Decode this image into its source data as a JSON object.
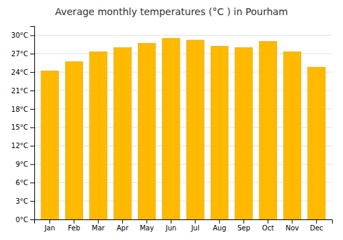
{
  "chart_data": {
    "type": "bar",
    "title": "Average monthly temperatures (°C ) in Pourham",
    "categories": [
      "Jan",
      "Feb",
      "Mar",
      "Apr",
      "May",
      "Jun",
      "Jul",
      "Aug",
      "Sep",
      "Oct",
      "Nov",
      "Dec"
    ],
    "values": [
      24.2,
      25.7,
      27.3,
      28.0,
      28.7,
      29.5,
      29.2,
      28.2,
      28.0,
      29.0,
      27.3,
      24.8
    ],
    "color": "#FFBA00",
    "ylim": [
      0,
      31.5
    ],
    "yticks": [
      {
        "value": 0,
        "label": "0°C"
      },
      {
        "value": 3,
        "label": "3°C"
      },
      {
        "value": 6,
        "label": "6°C"
      },
      {
        "value": 9,
        "label": "9°C"
      },
      {
        "value": 12,
        "label": "12°C"
      },
      {
        "value": 15,
        "label": "15°C"
      },
      {
        "value": 18,
        "label": "18°C"
      },
      {
        "value": 21,
        "label": "21°C"
      },
      {
        "value": 24,
        "label": "24°C"
      },
      {
        "value": 27,
        "label": "27°C"
      },
      {
        "value": 30,
        "label": "30°C"
      }
    ],
    "grid": true
  }
}
